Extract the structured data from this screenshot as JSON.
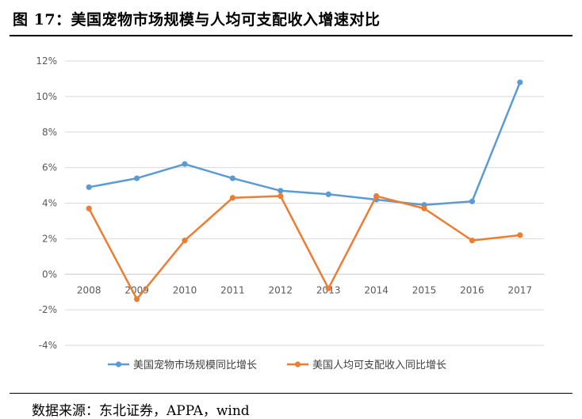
{
  "figure": {
    "title": "图 17：美国宠物市场规模与人均可支配收入增速对比",
    "source": "数据来源：东北证券，APPA，wind"
  },
  "chart_data": {
    "type": "line",
    "title": "",
    "xlabel": "",
    "ylabel": "",
    "categories": [
      "2008",
      "2009",
      "2010",
      "2011",
      "2012",
      "2013",
      "2014",
      "2015",
      "2016",
      "2017"
    ],
    "ylim": [
      -4,
      12
    ],
    "yticks": [
      12,
      10,
      8,
      6,
      4,
      2,
      0,
      -2,
      -4
    ],
    "ytick_labels": [
      "12%",
      "10%",
      "8%",
      "6%",
      "4%",
      "2%",
      "0%",
      "-2%",
      "-4%"
    ],
    "grid": true,
    "legend_position": "bottom",
    "series": [
      {
        "name": "美国宠物市场规模同比增长",
        "color": "#5B9BD5",
        "values": [
          4.9,
          5.4,
          6.2,
          5.4,
          4.7,
          4.5,
          4.2,
          3.9,
          4.1,
          10.8
        ]
      },
      {
        "name": "美国人均可支配收入同比增长",
        "color": "#ED7D31",
        "values": [
          3.7,
          -1.4,
          1.9,
          4.3,
          4.4,
          -0.8,
          4.4,
          3.7,
          1.9,
          2.2
        ]
      }
    ]
  }
}
